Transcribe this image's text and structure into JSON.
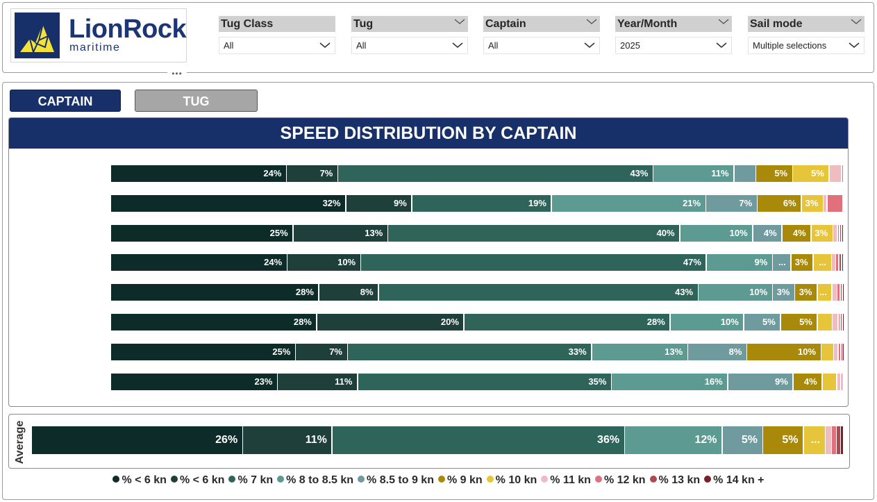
{
  "logo": {
    "name": "LionRock",
    "sub": "maritime"
  },
  "filters": [
    {
      "label": "Tug Class",
      "value": "All"
    },
    {
      "label": "Tug",
      "value": "All"
    },
    {
      "label": "Captain",
      "value": "All"
    },
    {
      "label": "Year/Month",
      "value": "2025"
    },
    {
      "label": "Sail mode",
      "value": "Multiple selections"
    }
  ],
  "more_options": "•••",
  "tabs": {
    "captain": "CAPTAIN",
    "tug": "TUG"
  },
  "chart_title": "SPEED DISTRIBUTION BY CAPTAIN",
  "average_label": "Average",
  "colors": {
    "brand": "#17306a",
    "series": [
      "#0d2b28",
      "#1f403a",
      "#2e645a",
      "#5c9a92",
      "#6f9a9e",
      "#a8890a",
      "#e6c53a",
      "#efbcbf",
      "#e0707c",
      "#b2474f",
      "#7b1f2c"
    ]
  },
  "chart_data": {
    "type": "bar",
    "stacked": "100%",
    "orientation": "horizontal",
    "title": "SPEED DISTRIBUTION BY CAPTAIN",
    "categories": [
      "",
      "",
      "",
      "",
      "",
      "",
      "",
      ""
    ],
    "series": [
      {
        "name": "% < 6 kn",
        "values": [
          24,
          32,
          25,
          24,
          28,
          28,
          25,
          23
        ]
      },
      {
        "name": "% < 6 kn",
        "values": [
          7,
          9,
          13,
          10,
          8,
          20,
          7,
          11
        ]
      },
      {
        "name": "% 7 kn",
        "values": [
          43,
          19,
          40,
          47,
          43,
          28,
          33,
          35
        ]
      },
      {
        "name": "% 8 to 8.5 kn",
        "values": [
          11,
          21,
          10,
          9,
          10,
          10,
          13,
          16
        ]
      },
      {
        "name": "% 8.5 to 9 kn",
        "values": [
          3,
          7,
          4,
          2.5,
          3,
          5,
          8,
          9
        ]
      },
      {
        "name": "% 9 kn",
        "values": [
          5,
          6,
          4,
          3,
          3,
          5,
          10,
          4
        ]
      },
      {
        "name": "% 10 kn",
        "values": [
          5,
          3,
          3,
          2.5,
          2,
          2,
          1.7,
          2
        ]
      },
      {
        "name": "% 11 kn",
        "values": [
          1.7,
          0.5,
          0.6,
          0.6,
          0.7,
          0.8,
          0.6,
          0.6
        ]
      },
      {
        "name": "% 12 kn",
        "values": [
          0.2,
          2.2,
          0.3,
          0.4,
          0.4,
          0.3,
          0.4,
          0.3
        ]
      },
      {
        "name": "% 13 kn",
        "values": [
          0,
          0,
          0.3,
          0.4,
          0.3,
          0.3,
          0.2,
          0
        ]
      },
      {
        "name": "% 14 kn +",
        "values": [
          0,
          0,
          0.2,
          0.2,
          0.1,
          0.1,
          0.1,
          0
        ]
      }
    ],
    "labels": [
      [
        "24%",
        "7%",
        "43%",
        "11%",
        "",
        "5%",
        "5%",
        "",
        "",
        "",
        ""
      ],
      [
        "32%",
        "9%",
        "19%",
        "21%",
        "7%",
        "6%",
        "3%",
        "",
        "",
        "",
        ""
      ],
      [
        "25%",
        "13%",
        "40%",
        "10%",
        "4%",
        "4%",
        "3%",
        "",
        "",
        "",
        ""
      ],
      [
        "24%",
        "10%",
        "47%",
        "9%",
        "...",
        "3%",
        "...",
        "",
        "",
        "",
        ""
      ],
      [
        "28%",
        "8%",
        "43%",
        "10%",
        "3%",
        "3%",
        "...",
        "",
        "",
        "",
        ""
      ],
      [
        "28%",
        "20%",
        "28%",
        "10%",
        "5%",
        "5%",
        "",
        "",
        "",
        "",
        ""
      ],
      [
        "25%",
        "7%",
        "33%",
        "13%",
        "8%",
        "10%",
        "",
        "",
        "",
        "",
        ""
      ],
      [
        "23%",
        "11%",
        "35%",
        "16%",
        "9%",
        "4%",
        "",
        "",
        "",
        "",
        ""
      ]
    ],
    "average": {
      "values": [
        26,
        11,
        36,
        12,
        5,
        5,
        2.7,
        0.8,
        0.6,
        0.5,
        0.4
      ],
      "labels": [
        "26%",
        "11%",
        "36%",
        "12%",
        "5%",
        "5%",
        "...",
        "",
        "",
        "",
        ""
      ]
    },
    "legend": [
      "% < 6 kn",
      "% < 6 kn",
      "% 7 kn",
      "% 8 to 8.5 kn",
      "% 8.5 to 9 kn",
      "% 9 kn",
      "% 10 kn",
      "% 11 kn",
      "% 12 kn",
      "% 13 kn",
      "% 14 kn +"
    ],
    "legend_position": "bottom",
    "xlim": [
      0,
      100
    ]
  }
}
